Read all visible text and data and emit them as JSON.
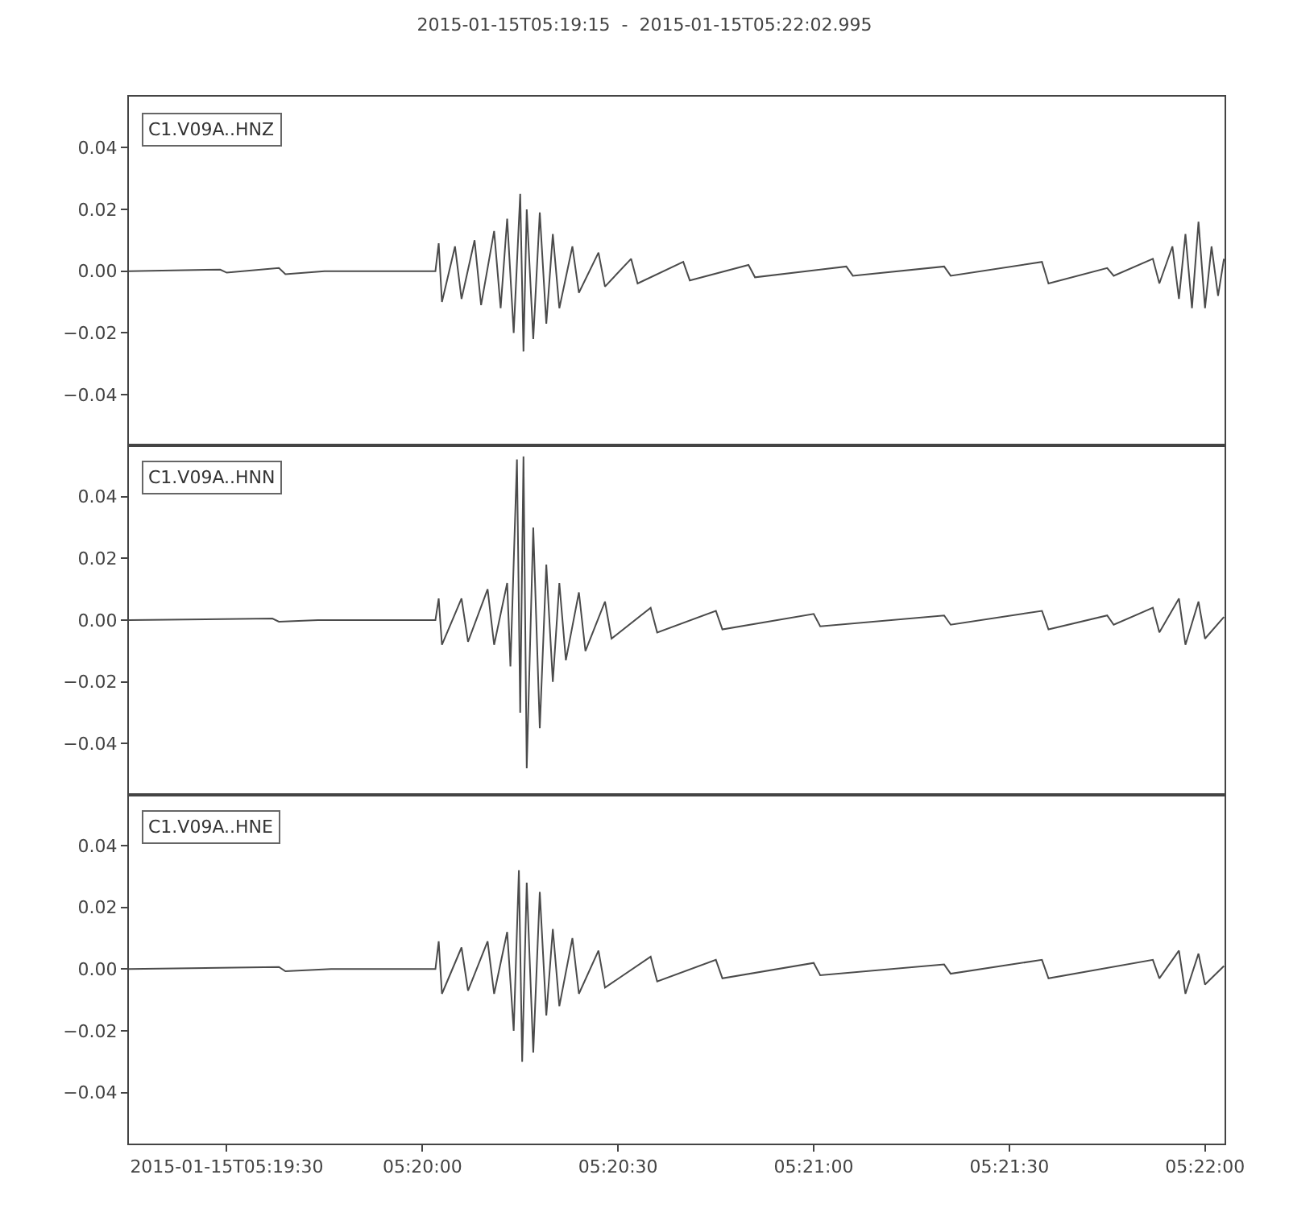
{
  "chart_data": [
    {
      "type": "line",
      "title": "2015-01-15T05:19:15  -  2015-01-15T05:22:02.995",
      "annotations": [
        "C1.V09A..HNZ"
      ],
      "xlim": [
        "2015-01-15T05:19:15",
        "2015-01-15T05:22:02.995"
      ],
      "ylim": [
        -0.0565,
        0.0565
      ],
      "yticks": [
        {
          "value": -0.04,
          "label": "−0.04"
        },
        {
          "value": -0.02,
          "label": "−0.02"
        },
        {
          "value": 0,
          "label": "0.00"
        },
        {
          "value": 0.02,
          "label": "0.02"
        },
        {
          "value": 0.04,
          "label": "0.04"
        }
      ],
      "tick_labels": "y",
      "grid": false,
      "series": [
        {
          "color": "#4b4b4b",
          "x": [
            "2015-01-15T05:19:15",
            "2015-01-15T05:19:29",
            "2015-01-15T05:19:30",
            "2015-01-15T05:19:38",
            "2015-01-15T05:19:39",
            "2015-01-15T05:19:45",
            "2015-01-15T05:20:02",
            "2015-01-15T05:20:02.5",
            "2015-01-15T05:20:03",
            "2015-01-15T05:20:05",
            "2015-01-15T05:20:06",
            "2015-01-15T05:20:08",
            "2015-01-15T05:20:09",
            "2015-01-15T05:20:11",
            "2015-01-15T05:20:12",
            "2015-01-15T05:20:13",
            "2015-01-15T05:20:14",
            "2015-01-15T05:20:15",
            "2015-01-15T05:20:15.5",
            "2015-01-15T05:20:16",
            "2015-01-15T05:20:17",
            "2015-01-15T05:20:18",
            "2015-01-15T05:20:19",
            "2015-01-15T05:20:20",
            "2015-01-15T05:20:21",
            "2015-01-15T05:20:23",
            "2015-01-15T05:20:24",
            "2015-01-15T05:20:27",
            "2015-01-15T05:20:28",
            "2015-01-15T05:20:32",
            "2015-01-15T05:20:33",
            "2015-01-15T05:20:40",
            "2015-01-15T05:20:41",
            "2015-01-15T05:20:50",
            "2015-01-15T05:20:51",
            "2015-01-15T05:21:05",
            "2015-01-15T05:21:06",
            "2015-01-15T05:21:20",
            "2015-01-15T05:21:21",
            "2015-01-15T05:21:35",
            "2015-01-15T05:21:36",
            "2015-01-15T05:21:45",
            "2015-01-15T05:21:46",
            "2015-01-15T05:21:52",
            "2015-01-15T05:21:53",
            "2015-01-15T05:21:55",
            "2015-01-15T05:21:56",
            "2015-01-15T05:21:57",
            "2015-01-15T05:21:58",
            "2015-01-15T05:21:59",
            "2015-01-15T05:22:00",
            "2015-01-15T05:22:01",
            "2015-01-15T05:22:02",
            "2015-01-15T05:22:02.9"
          ],
          "values": [
            0,
            0.0005,
            -0.0005,
            0.001,
            -0.001,
            0,
            0,
            0.009,
            -0.01,
            0.008,
            -0.009,
            0.01,
            -0.011,
            0.013,
            -0.012,
            0.017,
            -0.02,
            0.025,
            -0.026,
            0.02,
            -0.022,
            0.019,
            -0.017,
            0.012,
            -0.012,
            0.008,
            -0.007,
            0.006,
            -0.005,
            0.004,
            -0.004,
            0.003,
            -0.003,
            0.002,
            -0.002,
            0.0015,
            -0.0015,
            0.0015,
            -0.0015,
            0.003,
            -0.004,
            0.001,
            -0.0015,
            0.004,
            -0.004,
            0.008,
            -0.009,
            0.012,
            -0.012,
            0.016,
            -0.012,
            0.008,
            -0.008,
            0.004
          ]
        }
      ]
    },
    {
      "type": "line",
      "annotations": [
        "C1.V09A..HNN"
      ],
      "xlim": [
        "2015-01-15T05:19:15",
        "2015-01-15T05:22:02.995"
      ],
      "ylim": [
        -0.0565,
        0.0565
      ],
      "yticks": [
        {
          "value": -0.04,
          "label": "−0.04"
        },
        {
          "value": -0.02,
          "label": "−0.02"
        },
        {
          "value": 0,
          "label": "0.00"
        },
        {
          "value": 0.02,
          "label": "0.02"
        },
        {
          "value": 0.04,
          "label": "0.04"
        }
      ],
      "tick_labels": "y",
      "grid": false,
      "series": [
        {
          "color": "#4b4b4b",
          "x": [
            "2015-01-15T05:19:15",
            "2015-01-15T05:19:37",
            "2015-01-15T05:19:38",
            "2015-01-15T05:19:44",
            "2015-01-15T05:20:02",
            "2015-01-15T05:20:02.5",
            "2015-01-15T05:20:03",
            "2015-01-15T05:20:06",
            "2015-01-15T05:20:07",
            "2015-01-15T05:20:10",
            "2015-01-15T05:20:11",
            "2015-01-15T05:20:13",
            "2015-01-15T05:20:13.5",
            "2015-01-15T05:20:14.5",
            "2015-01-15T05:20:15",
            "2015-01-15T05:20:15.5",
            "2015-01-15T05:20:16",
            "2015-01-15T05:20:17",
            "2015-01-15T05:20:18",
            "2015-01-15T05:20:19",
            "2015-01-15T05:20:20",
            "2015-01-15T05:20:21",
            "2015-01-15T05:20:22",
            "2015-01-15T05:20:24",
            "2015-01-15T05:20:25",
            "2015-01-15T05:20:28",
            "2015-01-15T05:20:29",
            "2015-01-15T05:20:35",
            "2015-01-15T05:20:36",
            "2015-01-15T05:20:45",
            "2015-01-15T05:20:46",
            "2015-01-15T05:21:00",
            "2015-01-15T05:21:01",
            "2015-01-15T05:21:20",
            "2015-01-15T05:21:21",
            "2015-01-15T05:21:35",
            "2015-01-15T05:21:36",
            "2015-01-15T05:21:45",
            "2015-01-15T05:21:46",
            "2015-01-15T05:21:52",
            "2015-01-15T05:21:53",
            "2015-01-15T05:21:56",
            "2015-01-15T05:21:57",
            "2015-01-15T05:21:59",
            "2015-01-15T05:22:00",
            "2015-01-15T05:22:02.9"
          ],
          "values": [
            0,
            0.0005,
            -0.0005,
            0,
            0,
            0.007,
            -0.008,
            0.007,
            -0.007,
            0.01,
            -0.008,
            0.012,
            -0.015,
            0.052,
            -0.03,
            0.053,
            -0.048,
            0.03,
            -0.035,
            0.018,
            -0.02,
            0.012,
            -0.013,
            0.009,
            -0.01,
            0.006,
            -0.006,
            0.004,
            -0.004,
            0.003,
            -0.003,
            0.002,
            -0.002,
            0.0015,
            -0.0015,
            0.003,
            -0.003,
            0.0015,
            -0.0015,
            0.004,
            -0.004,
            0.007,
            -0.008,
            0.006,
            -0.006,
            0.001
          ]
        }
      ]
    },
    {
      "type": "line",
      "annotations": [
        "C1.V09A..HNE"
      ],
      "xlim": [
        "2015-01-15T05:19:15",
        "2015-01-15T05:22:02.995"
      ],
      "xticks": [
        {
          "value": "2015-01-15T05:19:30",
          "label": "2015-01-15T05:19:30"
        },
        {
          "value": "2015-01-15T05:20:00",
          "label": "05:20:00"
        },
        {
          "value": "2015-01-15T05:20:30",
          "label": "05:20:30"
        },
        {
          "value": "2015-01-15T05:21:00",
          "label": "05:21:00"
        },
        {
          "value": "2015-01-15T05:21:30",
          "label": "05:21:30"
        },
        {
          "value": "2015-01-15T05:22:00",
          "label": "05:22:00"
        }
      ],
      "ylim": [
        -0.0565,
        0.0565
      ],
      "yticks": [
        {
          "value": -0.04,
          "label": "−0.04"
        },
        {
          "value": -0.02,
          "label": "−0.02"
        },
        {
          "value": 0,
          "label": "0.00"
        },
        {
          "value": 0.02,
          "label": "0.02"
        },
        {
          "value": 0.04,
          "label": "0.04"
        }
      ],
      "grid": false,
      "series": [
        {
          "color": "#4b4b4b",
          "x": [
            "2015-01-15T05:19:15",
            "2015-01-15T05:19:38",
            "2015-01-15T05:19:39",
            "2015-01-15T05:19:46",
            "2015-01-15T05:20:02",
            "2015-01-15T05:20:02.5",
            "2015-01-15T05:20:03",
            "2015-01-15T05:20:06",
            "2015-01-15T05:20:07",
            "2015-01-15T05:20:10",
            "2015-01-15T05:20:11",
            "2015-01-15T05:20:13",
            "2015-01-15T05:20:14",
            "2015-01-15T05:20:14.8",
            "2015-01-15T05:20:15.3",
            "2015-01-15T05:20:16",
            "2015-01-15T05:20:17",
            "2015-01-15T05:20:18",
            "2015-01-15T05:20:19",
            "2015-01-15T05:20:20",
            "2015-01-15T05:20:21",
            "2015-01-15T05:20:23",
            "2015-01-15T05:20:24",
            "2015-01-15T05:20:27",
            "2015-01-15T05:20:28",
            "2015-01-15T05:20:35",
            "2015-01-15T05:20:36",
            "2015-01-15T05:20:45",
            "2015-01-15T05:20:46",
            "2015-01-15T05:21:00",
            "2015-01-15T05:21:01",
            "2015-01-15T05:21:20",
            "2015-01-15T05:21:21",
            "2015-01-15T05:21:35",
            "2015-01-15T05:21:36",
            "2015-01-15T05:21:52",
            "2015-01-15T05:21:53",
            "2015-01-15T05:21:56",
            "2015-01-15T05:21:57",
            "2015-01-15T05:21:59",
            "2015-01-15T05:22:00",
            "2015-01-15T05:22:02.9"
          ],
          "values": [
            0,
            0.0007,
            -0.0007,
            0,
            0,
            0.009,
            -0.008,
            0.007,
            -0.007,
            0.009,
            -0.008,
            0.012,
            -0.02,
            0.032,
            -0.03,
            0.028,
            -0.027,
            0.025,
            -0.015,
            0.013,
            -0.012,
            0.01,
            -0.008,
            0.006,
            -0.006,
            0.004,
            -0.004,
            0.003,
            -0.003,
            0.002,
            -0.002,
            0.0015,
            -0.0015,
            0.003,
            -0.003,
            0.003,
            -0.003,
            0.006,
            -0.008,
            0.005,
            -0.005,
            0.001
          ]
        }
      ]
    }
  ]
}
